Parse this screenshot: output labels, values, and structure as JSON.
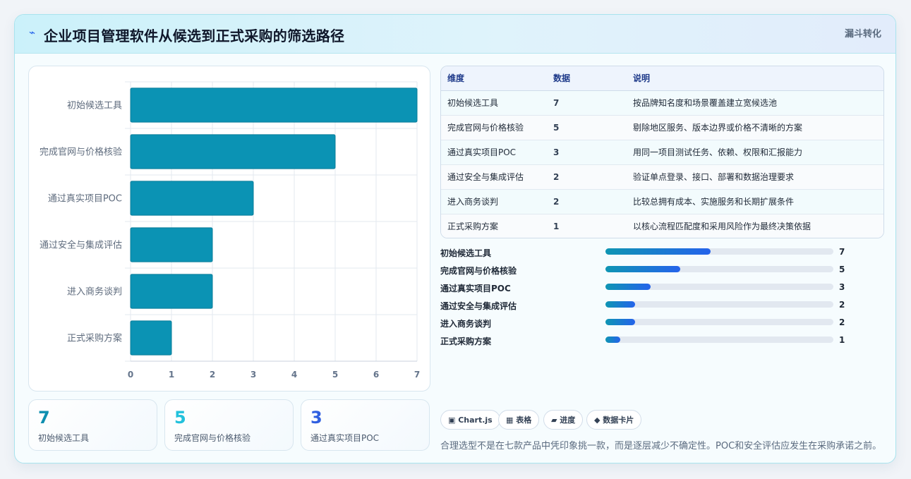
{
  "header": {
    "icon": "bolt-icon",
    "title": "企业项目管理软件从候选到正式采购的筛选路径",
    "tag": "漏斗转化"
  },
  "chart_data": {
    "type": "bar",
    "orientation": "horizontal",
    "categories": [
      "初始候选工具",
      "完成官网与价格核验",
      "通过真实项目POC",
      "通过安全与集成评估",
      "进入商务谈判",
      "正式采购方案"
    ],
    "values": [
      7,
      5,
      3,
      2,
      2,
      1
    ],
    "xlim": [
      0,
      7
    ],
    "xticks": [
      0,
      1,
      2,
      3,
      4,
      5,
      6,
      7
    ],
    "grid": true,
    "legend": "none",
    "bar_color": "#0b93b4"
  },
  "stats": [
    {
      "value": "7",
      "label": "初始候选工具",
      "color": "#0e8fb0"
    },
    {
      "value": "5",
      "label": "完成官网与价格核验",
      "color": "#22c1dc"
    },
    {
      "value": "3",
      "label": "通过真实项目POC",
      "color": "#2f5fe0"
    }
  ],
  "table": {
    "headers": [
      "维度",
      "数据",
      "说明"
    ],
    "rows": [
      {
        "dim": "初始候选工具",
        "val": "7",
        "desc": "按品牌知名度和场景覆盖建立宽候选池"
      },
      {
        "dim": "完成官网与价格核验",
        "val": "5",
        "desc": "剔除地区服务、版本边界或价格不清晰的方案"
      },
      {
        "dim": "通过真实项目POC",
        "val": "3",
        "desc": "用同一项目测试任务、依赖、权限和汇报能力"
      },
      {
        "dim": "通过安全与集成评估",
        "val": "2",
        "desc": "验证单点登录、接口、部署和数据治理要求"
      },
      {
        "dim": "进入商务谈判",
        "val": "2",
        "desc": "比较总拥有成本、实施服务和长期扩展条件"
      },
      {
        "dim": "正式采购方案",
        "val": "1",
        "desc": "以核心流程匹配度和采用风险作为最终决策依据"
      }
    ]
  },
  "progress": {
    "max": 7,
    "items": [
      {
        "label": "初始候选工具",
        "value": 7
      },
      {
        "label": "完成官网与价格核验",
        "value": 5
      },
      {
        "label": "通过真实项目POC",
        "value": 3
      },
      {
        "label": "通过安全与集成评估",
        "value": 2
      },
      {
        "label": "进入商务谈判",
        "value": 2
      },
      {
        "label": "正式采购方案",
        "value": 1
      }
    ]
  },
  "chips": [
    "▣ Chart.js",
    "▦ 表格",
    "▰ 进度",
    "◆ 数据卡片"
  ],
  "note": "合理选型不是在七款产品中凭印象挑一款，而是逐层减少不确定性。POC和安全评估应发生在采购承诺之前。"
}
